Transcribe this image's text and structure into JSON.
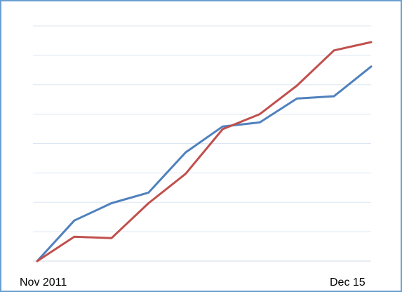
{
  "chart_data": {
    "type": "line",
    "title": "",
    "xlabel": "",
    "ylabel": "",
    "grid": true,
    "x_tick_labels": [
      "Nov 2011",
      "Dec 15"
    ],
    "x": [
      0,
      1,
      2,
      3,
      4,
      5,
      6,
      7,
      8,
      9
    ],
    "ylim": [
      0,
      8
    ],
    "series": [
      {
        "color": "#4f81bd",
        "values": [
          0,
          1.38,
          1.97,
          2.33,
          3.7,
          4.58,
          4.72,
          5.53,
          5.61,
          6.62
        ]
      },
      {
        "color": "#c0504d",
        "values": [
          0,
          0.83,
          0.78,
          1.97,
          2.97,
          4.49,
          5.0,
          5.97,
          7.17,
          7.45
        ]
      }
    ],
    "gridline_color": "#dce6f2",
    "axis_color": "#d0d8e4"
  }
}
